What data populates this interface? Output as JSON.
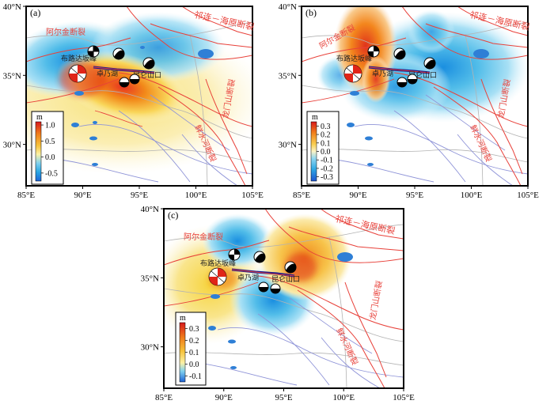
{
  "panels": [
    {
      "id": "a",
      "label": "(a)",
      "colorbar": {
        "unit": "m",
        "ticks": [
          1.0,
          0.5,
          0.0,
          -0.5
        ],
        "tick_labels": [
          "1.0",
          "0.5",
          "0.0",
          "-0.5"
        ],
        "min": -0.75,
        "max": 1.1
      }
    },
    {
      "id": "b",
      "label": "(b)",
      "colorbar": {
        "unit": "m",
        "ticks": [
          0.3,
          0.2,
          0.1,
          0.0,
          -0.1,
          -0.2,
          -0.3
        ],
        "tick_labels": [
          "0.3",
          "0.2",
          "0.1",
          "0.0",
          "-0.1",
          "-0.2",
          "-0.3"
        ],
        "min": -0.35,
        "max": 0.35
      }
    },
    {
      "id": "c",
      "label": "(c)",
      "colorbar": {
        "unit": "m",
        "ticks": [
          0.3,
          0.2,
          0.1,
          0.0,
          -0.1
        ],
        "tick_labels": [
          "0.3",
          "0.2",
          "0.1",
          "0.0",
          "-0.1"
        ],
        "min": -0.15,
        "max": 0.35
      }
    }
  ],
  "axes": {
    "lon_ticks": [
      "85°E",
      "90°E",
      "95°E",
      "100°E",
      "105°E"
    ],
    "lat_ticks": [
      "40°N",
      "35°N",
      "30°N"
    ]
  },
  "fault_labels": {
    "qilian": "祁连－海原断裂",
    "altyn": "阿尔金断裂",
    "buruo": "布路达坂峰",
    "kunlun": "昆仑山口",
    "zhuoyan": "卓乃湖",
    "xianshui": "鲜水河断裂",
    "longmen": "龙门山断裂"
  },
  "colors": {
    "fault": "#e8413a",
    "rupture": "#1a1a8c",
    "river": "#8f94d8",
    "border": "#b3b3b3",
    "lake": "#2e7fd6",
    "neg": "#2aa9e0",
    "pos": "#f08a1c",
    "peak": "#e02418"
  }
}
